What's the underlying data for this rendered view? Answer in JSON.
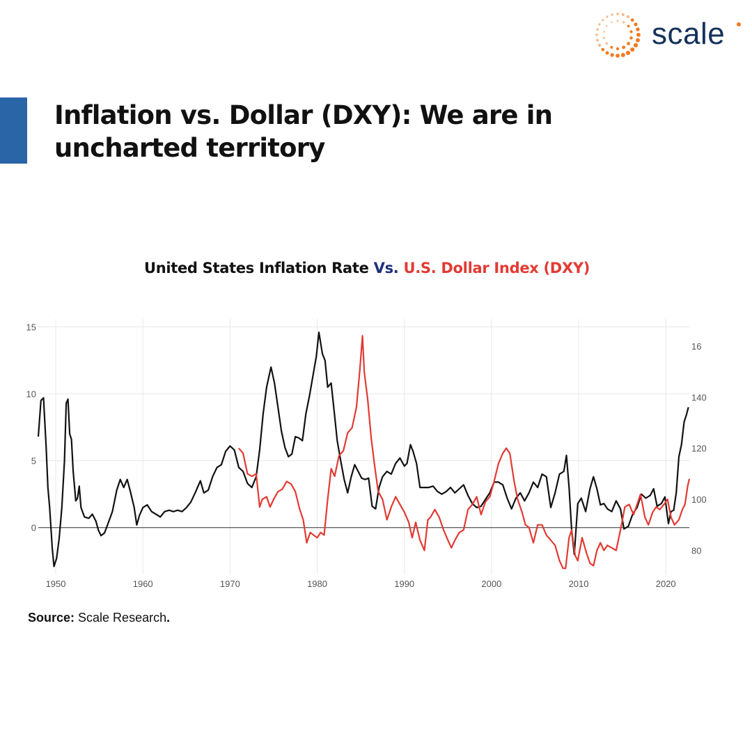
{
  "brand": {
    "name": "scale",
    "icon": "dotted-hexagon-logo-icon",
    "color": "#16325c",
    "accent": "#f47b20"
  },
  "headline": "Inflation vs. Dollar (DXY): We are in uncharted territory",
  "headline_bar_color": "#2a65a8",
  "chart_data": {
    "type": "line",
    "title_parts": [
      {
        "text": "United States Inflation Rate ",
        "color": "#111111"
      },
      {
        "text": "Vs.",
        "color": "#1a2f7a"
      },
      {
        "text": " U.S. Dollar Index (DXY)",
        "color": "#e23a33"
      }
    ],
    "xlim": [
      1948,
      2022.7
    ],
    "x_ticks": [
      "1950",
      "1960",
      "1970",
      "1980",
      "1990",
      "2000",
      "2010",
      "2020"
    ],
    "left_axis": {
      "range": [
        -3.5,
        15.6
      ],
      "ticks": [
        "15",
        "10",
        "5",
        "0"
      ],
      "zero_line": true
    },
    "right_axis": {
      "range": [
        70.6,
        170.6
      ],
      "ticks": [
        "16",
        "140",
        "120",
        "100",
        "80"
      ]
    },
    "grid": true,
    "series": [
      {
        "axis": "left",
        "color": "#111111",
        "points": [
          [
            1948.0,
            6.8
          ],
          [
            1948.3,
            9.5
          ],
          [
            1948.6,
            9.7
          ],
          [
            1948.9,
            6.0
          ],
          [
            1949.1,
            3.0
          ],
          [
            1949.3,
            1.5
          ],
          [
            1949.6,
            -1.5
          ],
          [
            1949.8,
            -2.9
          ],
          [
            1950.1,
            -2.3
          ],
          [
            1950.4,
            -0.8
          ],
          [
            1950.7,
            1.5
          ],
          [
            1951.0,
            5.0
          ],
          [
            1951.2,
            9.3
          ],
          [
            1951.4,
            9.6
          ],
          [
            1951.6,
            7.0
          ],
          [
            1951.8,
            6.6
          ],
          [
            1952.0,
            4.2
          ],
          [
            1952.3,
            2.0
          ],
          [
            1952.5,
            2.2
          ],
          [
            1952.7,
            3.1
          ],
          [
            1952.9,
            1.5
          ],
          [
            1953.3,
            0.8
          ],
          [
            1953.8,
            0.7
          ],
          [
            1954.2,
            1.0
          ],
          [
            1954.6,
            0.5
          ],
          [
            1954.9,
            -0.2
          ],
          [
            1955.2,
            -0.6
          ],
          [
            1955.6,
            -0.4
          ],
          [
            1956.0,
            0.3
          ],
          [
            1956.5,
            1.2
          ],
          [
            1957.0,
            2.8
          ],
          [
            1957.4,
            3.6
          ],
          [
            1957.8,
            3.0
          ],
          [
            1958.2,
            3.6
          ],
          [
            1958.6,
            2.6
          ],
          [
            1959.0,
            1.5
          ],
          [
            1959.3,
            0.2
          ],
          [
            1959.6,
            0.9
          ],
          [
            1960.0,
            1.5
          ],
          [
            1960.5,
            1.7
          ],
          [
            1961.0,
            1.2
          ],
          [
            1961.5,
            1.0
          ],
          [
            1962.0,
            0.8
          ],
          [
            1962.5,
            1.2
          ],
          [
            1963.0,
            1.3
          ],
          [
            1963.5,
            1.2
          ],
          [
            1964.0,
            1.3
          ],
          [
            1964.5,
            1.2
          ],
          [
            1965.0,
            1.5
          ],
          [
            1965.5,
            1.9
          ],
          [
            1966.0,
            2.6
          ],
          [
            1966.6,
            3.5
          ],
          [
            1967.0,
            2.6
          ],
          [
            1967.5,
            2.8
          ],
          [
            1968.0,
            3.8
          ],
          [
            1968.5,
            4.5
          ],
          [
            1969.0,
            4.7
          ],
          [
            1969.5,
            5.7
          ],
          [
            1970.0,
            6.1
          ],
          [
            1970.5,
            5.8
          ],
          [
            1971.0,
            4.5
          ],
          [
            1971.5,
            4.2
          ],
          [
            1972.0,
            3.3
          ],
          [
            1972.5,
            3.0
          ],
          [
            1973.0,
            3.8
          ],
          [
            1973.4,
            5.8
          ],
          [
            1973.8,
            8.5
          ],
          [
            1974.2,
            10.5
          ],
          [
            1974.7,
            12.0
          ],
          [
            1975.1,
            10.8
          ],
          [
            1975.5,
            9.0
          ],
          [
            1975.9,
            7.2
          ],
          [
            1976.3,
            6.0
          ],
          [
            1976.7,
            5.3
          ],
          [
            1977.1,
            5.5
          ],
          [
            1977.5,
            6.8
          ],
          [
            1977.9,
            6.7
          ],
          [
            1978.3,
            6.5
          ],
          [
            1978.7,
            8.5
          ],
          [
            1979.1,
            9.8
          ],
          [
            1979.5,
            11.3
          ],
          [
            1979.9,
            12.8
          ],
          [
            1980.2,
            14.6
          ],
          [
            1980.6,
            13.0
          ],
          [
            1980.9,
            12.5
          ],
          [
            1981.2,
            10.5
          ],
          [
            1981.6,
            10.8
          ],
          [
            1981.9,
            9.0
          ],
          [
            1982.3,
            6.5
          ],
          [
            1982.7,
            5.0
          ],
          [
            1983.1,
            3.6
          ],
          [
            1983.5,
            2.6
          ],
          [
            1983.9,
            3.8
          ],
          [
            1984.3,
            4.7
          ],
          [
            1984.7,
            4.2
          ],
          [
            1985.1,
            3.7
          ],
          [
            1985.5,
            3.6
          ],
          [
            1985.9,
            3.7
          ],
          [
            1986.3,
            1.6
          ],
          [
            1986.7,
            1.4
          ],
          [
            1987.1,
            3.0
          ],
          [
            1987.5,
            3.8
          ],
          [
            1988.0,
            4.2
          ],
          [
            1988.5,
            4.0
          ],
          [
            1989.0,
            4.8
          ],
          [
            1989.5,
            5.2
          ],
          [
            1990.0,
            4.6
          ],
          [
            1990.3,
            4.8
          ],
          [
            1990.7,
            6.2
          ],
          [
            1991.0,
            5.7
          ],
          [
            1991.4,
            4.8
          ],
          [
            1991.8,
            3.0
          ],
          [
            1992.3,
            3.0
          ],
          [
            1992.8,
            3.0
          ],
          [
            1993.3,
            3.1
          ],
          [
            1993.8,
            2.7
          ],
          [
            1994.3,
            2.5
          ],
          [
            1994.8,
            2.7
          ],
          [
            1995.3,
            3.0
          ],
          [
            1995.8,
            2.6
          ],
          [
            1996.3,
            2.9
          ],
          [
            1996.8,
            3.2
          ],
          [
            1997.3,
            2.4
          ],
          [
            1997.8,
            1.8
          ],
          [
            1998.3,
            1.5
          ],
          [
            1998.8,
            1.6
          ],
          [
            1999.3,
            2.1
          ],
          [
            1999.8,
            2.6
          ],
          [
            2000.3,
            3.4
          ],
          [
            2000.8,
            3.4
          ],
          [
            2001.3,
            3.2
          ],
          [
            2001.8,
            2.2
          ],
          [
            2002.3,
            1.4
          ],
          [
            2002.8,
            2.2
          ],
          [
            2003.3,
            2.6
          ],
          [
            2003.8,
            2.0
          ],
          [
            2004.3,
            2.6
          ],
          [
            2004.8,
            3.4
          ],
          [
            2005.3,
            3.0
          ],
          [
            2005.8,
            4.0
          ],
          [
            2006.3,
            3.8
          ],
          [
            2006.8,
            1.5
          ],
          [
            2007.3,
            2.6
          ],
          [
            2007.8,
            4.0
          ],
          [
            2008.3,
            4.2
          ],
          [
            2008.6,
            5.4
          ],
          [
            2008.9,
            3.0
          ],
          [
            2009.2,
            -0.2
          ],
          [
            2009.5,
            -2.0
          ],
          [
            2009.9,
            1.8
          ],
          [
            2010.3,
            2.2
          ],
          [
            2010.8,
            1.2
          ],
          [
            2011.3,
            2.9
          ],
          [
            2011.7,
            3.8
          ],
          [
            2012.1,
            2.9
          ],
          [
            2012.5,
            1.7
          ],
          [
            2012.9,
            1.8
          ],
          [
            2013.3,
            1.4
          ],
          [
            2013.8,
            1.2
          ],
          [
            2014.3,
            2.0
          ],
          [
            2014.8,
            1.4
          ],
          [
            2015.2,
            -0.1
          ],
          [
            2015.7,
            0.1
          ],
          [
            2016.2,
            1.0
          ],
          [
            2016.7,
            1.5
          ],
          [
            2017.2,
            2.5
          ],
          [
            2017.7,
            2.2
          ],
          [
            2018.2,
            2.4
          ],
          [
            2018.6,
            2.9
          ],
          [
            2019.0,
            1.6
          ],
          [
            2019.5,
            1.8
          ],
          [
            2019.9,
            2.3
          ],
          [
            2020.3,
            0.3
          ],
          [
            2020.6,
            1.2
          ],
          [
            2020.9,
            1.3
          ],
          [
            2021.2,
            2.6
          ],
          [
            2021.5,
            5.3
          ],
          [
            2021.8,
            6.2
          ],
          [
            2022.1,
            7.9
          ],
          [
            2022.4,
            8.5
          ],
          [
            2022.6,
            9.0
          ]
        ]
      },
      {
        "axis": "right",
        "color": "#e23a33",
        "points": [
          [
            1971.0,
            120
          ],
          [
            1971.5,
            118
          ],
          [
            1972.0,
            110
          ],
          [
            1972.5,
            109
          ],
          [
            1973.0,
            110
          ],
          [
            1973.4,
            97
          ],
          [
            1973.7,
            100
          ],
          [
            1974.2,
            101
          ],
          [
            1974.6,
            97
          ],
          [
            1975.0,
            100
          ],
          [
            1975.5,
            103
          ],
          [
            1976.0,
            104
          ],
          [
            1976.5,
            107
          ],
          [
            1977.0,
            106
          ],
          [
            1977.5,
            103
          ],
          [
            1978.0,
            96
          ],
          [
            1978.4,
            92
          ],
          [
            1978.8,
            83
          ],
          [
            1979.2,
            87
          ],
          [
            1979.6,
            86
          ],
          [
            1980.0,
            85
          ],
          [
            1980.4,
            87
          ],
          [
            1980.8,
            86
          ],
          [
            1981.2,
            100
          ],
          [
            1981.6,
            112
          ],
          [
            1982.0,
            109
          ],
          [
            1982.5,
            117
          ],
          [
            1983.0,
            119
          ],
          [
            1983.5,
            126
          ],
          [
            1984.0,
            128
          ],
          [
            1984.5,
            136
          ],
          [
            1984.9,
            151
          ],
          [
            1985.2,
            164
          ],
          [
            1985.4,
            150
          ],
          [
            1985.8,
            139
          ],
          [
            1986.2,
            124
          ],
          [
            1986.6,
            113
          ],
          [
            1987.0,
            103
          ],
          [
            1987.5,
            100
          ],
          [
            1988.0,
            92
          ],
          [
            1988.5,
            97
          ],
          [
            1989.0,
            101
          ],
          [
            1989.5,
            98
          ],
          [
            1990.0,
            95
          ],
          [
            1990.5,
            91
          ],
          [
            1990.9,
            85
          ],
          [
            1991.3,
            91
          ],
          [
            1991.8,
            84
          ],
          [
            1992.3,
            80
          ],
          [
            1992.7,
            92
          ],
          [
            1993.0,
            93
          ],
          [
            1993.5,
            96
          ],
          [
            1994.0,
            93
          ],
          [
            1994.5,
            88
          ],
          [
            1995.0,
            84
          ],
          [
            1995.4,
            81
          ],
          [
            1995.8,
            84
          ],
          [
            1996.3,
            87
          ],
          [
            1996.8,
            88
          ],
          [
            1997.3,
            96
          ],
          [
            1997.8,
            98
          ],
          [
            1998.3,
            101
          ],
          [
            1998.8,
            94
          ],
          [
            1999.3,
            99
          ],
          [
            1999.8,
            101
          ],
          [
            2000.3,
            107
          ],
          [
            2000.8,
            114
          ],
          [
            2001.3,
            118
          ],
          [
            2001.7,
            120
          ],
          [
            2002.1,
            118
          ],
          [
            2002.6,
            107
          ],
          [
            2003.0,
            100
          ],
          [
            2003.5,
            95
          ],
          [
            2003.9,
            90
          ],
          [
            2004.3,
            89
          ],
          [
            2004.8,
            83
          ],
          [
            2005.3,
            90
          ],
          [
            2005.8,
            90
          ],
          [
            2006.3,
            86
          ],
          [
            2006.8,
            84
          ],
          [
            2007.3,
            82
          ],
          [
            2007.8,
            76
          ],
          [
            2008.2,
            73
          ],
          [
            2008.5,
            73
          ],
          [
            2008.9,
            85
          ],
          [
            2009.2,
            88
          ],
          [
            2009.6,
            78
          ],
          [
            2009.9,
            76
          ],
          [
            2010.4,
            85
          ],
          [
            2010.9,
            79
          ],
          [
            2011.3,
            75
          ],
          [
            2011.7,
            74
          ],
          [
            2012.1,
            80
          ],
          [
            2012.5,
            83
          ],
          [
            2012.9,
            80
          ],
          [
            2013.3,
            82
          ],
          [
            2013.8,
            81
          ],
          [
            2014.3,
            80
          ],
          [
            2014.8,
            88
          ],
          [
            2015.3,
            97
          ],
          [
            2015.8,
            98
          ],
          [
            2016.3,
            94
          ],
          [
            2016.8,
            99
          ],
          [
            2017.1,
            102
          ],
          [
            2017.6,
            93
          ],
          [
            2018.0,
            90
          ],
          [
            2018.5,
            95
          ],
          [
            2018.9,
            97
          ],
          [
            2019.3,
            96
          ],
          [
            2019.8,
            98
          ],
          [
            2020.2,
            100
          ],
          [
            2020.6,
            93
          ],
          [
            2021.0,
            90
          ],
          [
            2021.5,
            92
          ],
          [
            2021.9,
            96
          ],
          [
            2022.2,
            98
          ],
          [
            2022.5,
            105
          ],
          [
            2022.7,
            108
          ]
        ]
      }
    ],
    "colors": {
      "grid": "#e8e8e8",
      "tick": "#555555",
      "zero_line": "#333333"
    }
  },
  "source": {
    "label": "Source:",
    "text": " Scale Research",
    "end": "."
  }
}
